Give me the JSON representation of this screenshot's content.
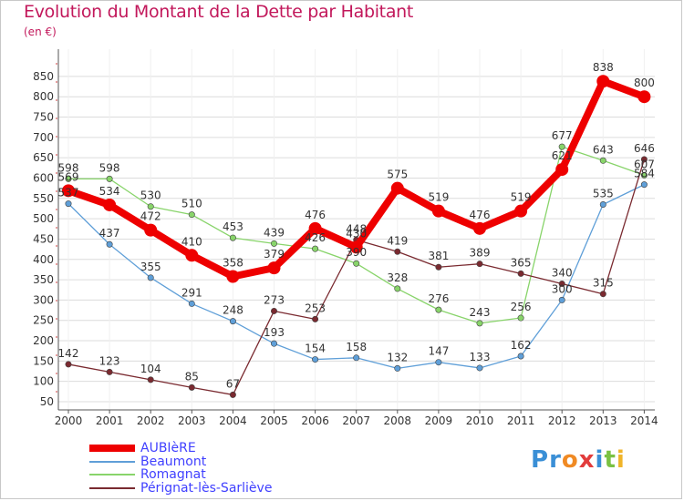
{
  "title": "Evolution du Montant de la Dette par Habitant",
  "unit": "(en €)",
  "logo": {
    "text": "Proxiti",
    "letters": [
      {
        "ch": "P",
        "color": "#3a8fd6"
      },
      {
        "ch": "r",
        "color": "#3a8fd6"
      },
      {
        "ch": "o",
        "color": "#f08a24"
      },
      {
        "ch": "x",
        "color": "#e23c3c"
      },
      {
        "ch": "i",
        "color": "#3a8fd6"
      },
      {
        "ch": "t",
        "color": "#7ac143"
      },
      {
        "ch": "i",
        "color": "#f0b429"
      }
    ]
  },
  "chart_data": {
    "type": "line",
    "title": "Evolution du Montant de la Dette par Habitant",
    "ylabel": "(en €)",
    "xlabel": "",
    "x": [
      "2000",
      "2001",
      "2002",
      "2003",
      "2004",
      "2005",
      "2006",
      "2007",
      "2008",
      "2009",
      "2010",
      "2011",
      "2012",
      "2013",
      "2014"
    ],
    "yticks": [
      50,
      100,
      150,
      200,
      250,
      300,
      350,
      400,
      450,
      500,
      550,
      600,
      650,
      700,
      750,
      800,
      850
    ],
    "ylim": [
      40,
      870
    ],
    "grid": "horizontal",
    "legend_position": "bottom-left",
    "series": [
      {
        "name": "AUBIèRE",
        "color": "#ee0000",
        "emphasis": true,
        "values": [
          569,
          534,
          472,
          410,
          358,
          379,
          476,
          430,
          575,
          519,
          476,
          519,
          621,
          838,
          800
        ]
      },
      {
        "name": "Beaumont",
        "color": "#5f9fd8",
        "values": [
          537,
          437,
          355,
          291,
          248,
          193,
          154,
          158,
          132,
          147,
          133,
          162,
          300,
          535,
          584
        ]
      },
      {
        "name": "Romagnat",
        "color": "#88d46a",
        "values": [
          598,
          598,
          530,
          510,
          453,
          439,
          426,
          390,
          328,
          276,
          243,
          256,
          677,
          643,
          607
        ]
      },
      {
        "name": "Pérignat-lès-Sarliève",
        "color": "#7a2a30",
        "values": [
          142,
          123,
          104,
          85,
          67,
          273,
          253,
          448,
          419,
          381,
          389,
          365,
          340,
          315,
          646
        ]
      }
    ]
  }
}
